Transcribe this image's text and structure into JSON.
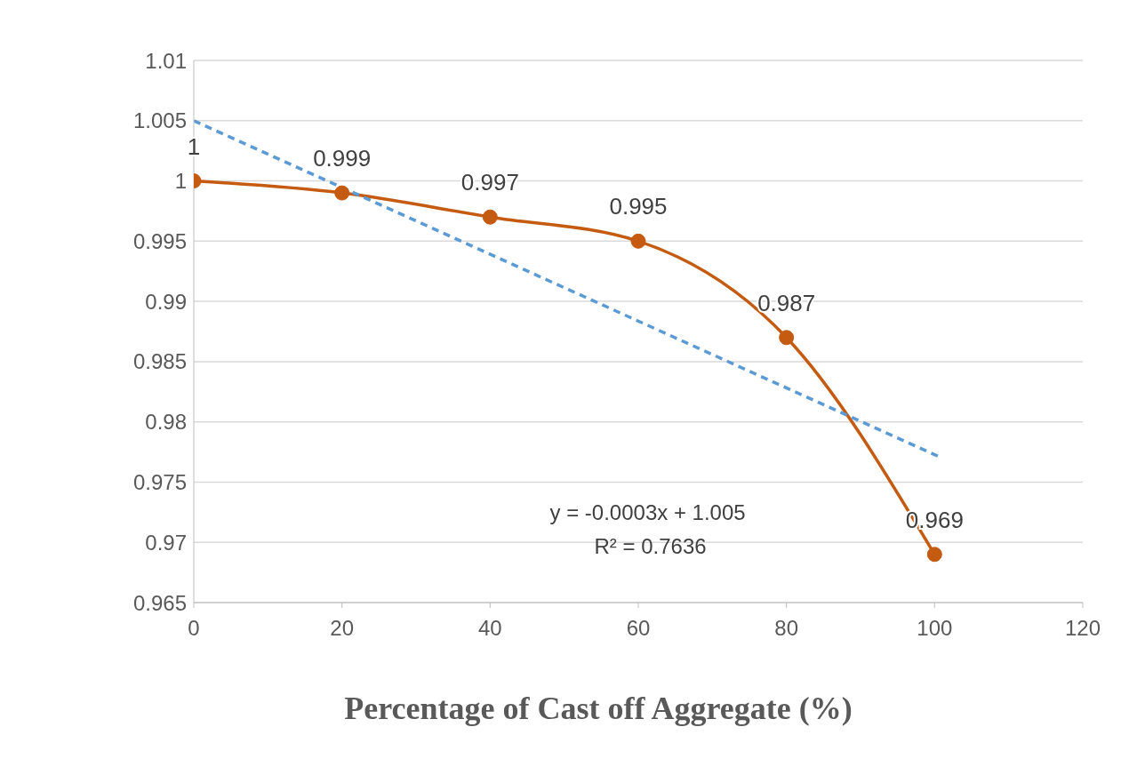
{
  "chart_data": {
    "type": "line",
    "xlabel": "Percentage of Cast off Aggregate (%)",
    "xlim": [
      0,
      120
    ],
    "xticks": [
      0,
      20,
      40,
      60,
      80,
      100,
      120
    ],
    "ylim": [
      0.965,
      1.01
    ],
    "yticks": [
      0.965,
      0.97,
      0.975,
      0.98,
      0.985,
      0.99,
      0.995,
      1,
      1.005,
      1.01
    ],
    "grid": "y",
    "series": [
      {
        "color": "#c55a11",
        "x": [
          0,
          20,
          40,
          60,
          80,
          100
        ],
        "values": [
          1,
          0.999,
          0.997,
          0.995,
          0.987,
          0.969
        ],
        "value_labels": [
          "1",
          "0.999",
          "0.997",
          "0.995",
          "0.987",
          "0.969"
        ],
        "marker": "circle",
        "line_style": "solid"
      },
      {
        "color": "#5b9bd5",
        "x": [
          0,
          101
        ],
        "values": [
          1.005,
          0.977
        ],
        "marker": "none",
        "line_style": "dashed"
      }
    ],
    "annotations": [
      "y = -0.0003x + 1.005",
      "R² = 0.7636"
    ]
  }
}
